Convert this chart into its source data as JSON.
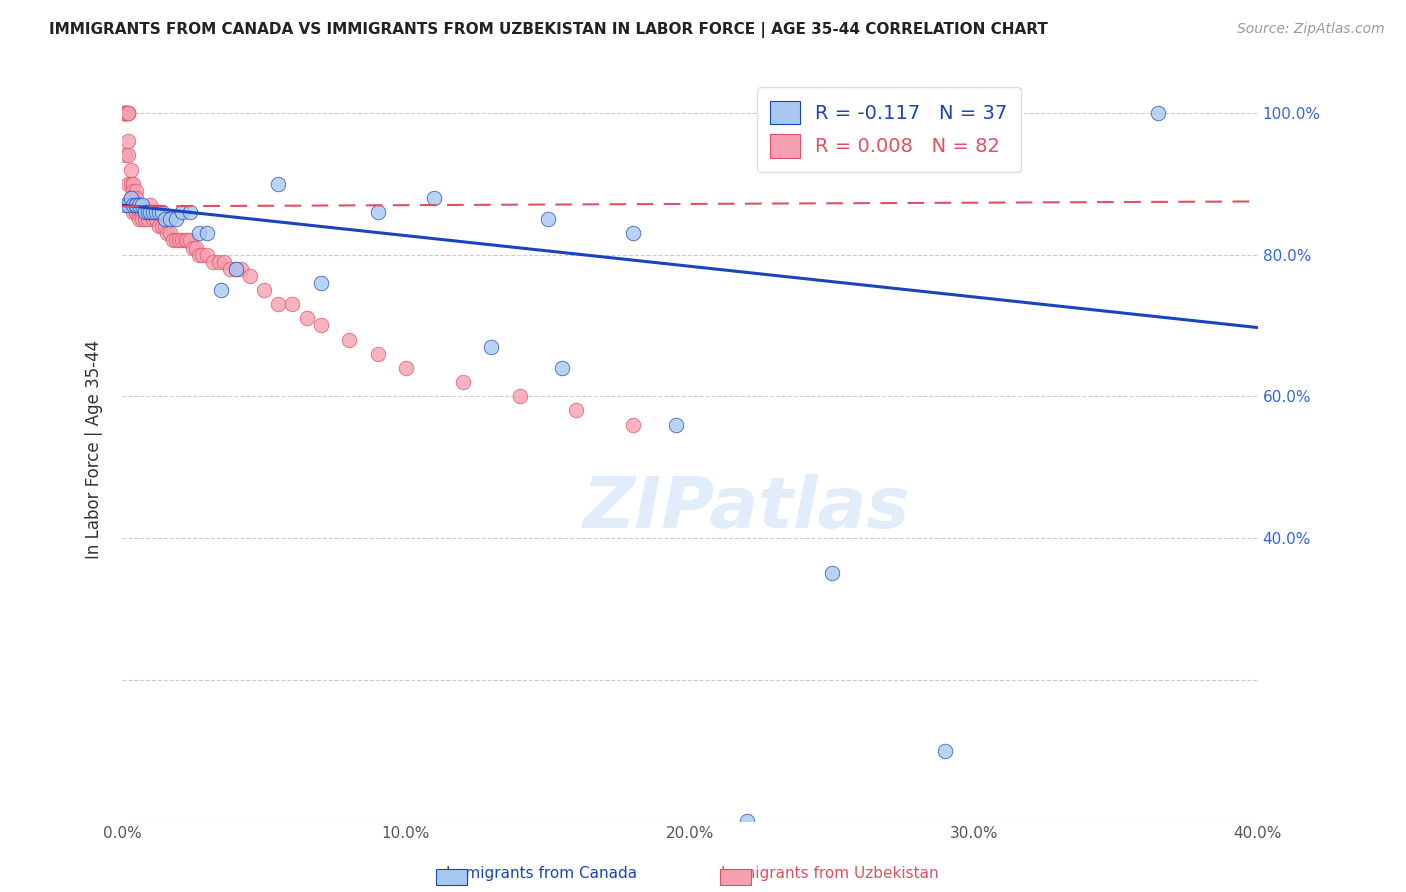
{
  "title": "IMMIGRANTS FROM CANADA VS IMMIGRANTS FROM UZBEKISTAN IN LABOR FORCE | AGE 35-44 CORRELATION CHART",
  "source": "Source: ZipAtlas.com",
  "ylabel": "In Labor Force | Age 35-44",
  "xlim": [
    0.0,
    0.4
  ],
  "ylim": [
    0.0,
    1.05
  ],
  "yticks": [
    0.0,
    0.2,
    0.4,
    0.6,
    0.8,
    1.0
  ],
  "xticks": [
    0.0,
    0.05,
    0.1,
    0.15,
    0.2,
    0.25,
    0.3,
    0.35,
    0.4
  ],
  "xtick_labels": [
    "0.0%",
    "",
    "10.0%",
    "",
    "20.0%",
    "",
    "30.0%",
    "",
    "40.0%"
  ],
  "legend_R_canada": "-0.117",
  "legend_N_canada": "37",
  "legend_R_uzbekistan": "0.008",
  "legend_N_uzbekistan": "82",
  "canada_color": "#a8c8f0",
  "uzbekistan_color": "#f5a0b0",
  "canada_line_color": "#1a44bb",
  "uzbekistan_line_color": "#e05060",
  "background_color": "#ffffff",
  "watermark": "ZIPatlas",
  "canada_x": [
    0.001,
    0.002,
    0.003,
    0.004,
    0.005,
    0.005,
    0.006,
    0.007,
    0.008,
    0.009,
    0.01,
    0.011,
    0.012,
    0.013,
    0.014,
    0.015,
    0.017,
    0.019,
    0.021,
    0.024,
    0.027,
    0.03,
    0.035,
    0.04,
    0.055,
    0.07,
    0.09,
    0.11,
    0.13,
    0.15,
    0.155,
    0.18,
    0.195,
    0.22,
    0.25,
    0.29,
    0.365
  ],
  "canada_y": [
    0.87,
    0.87,
    0.88,
    0.87,
    0.87,
    0.87,
    0.87,
    0.87,
    0.86,
    0.86,
    0.86,
    0.86,
    0.86,
    0.86,
    0.86,
    0.85,
    0.85,
    0.85,
    0.86,
    0.86,
    0.83,
    0.83,
    0.75,
    0.78,
    0.9,
    0.76,
    0.86,
    0.88,
    0.67,
    0.85,
    0.64,
    0.83,
    0.56,
    0.0,
    0.35,
    0.1,
    1.0
  ],
  "canada_trend_x": [
    0.0,
    0.4
  ],
  "canada_trend_y": [
    0.87,
    0.697
  ],
  "uzbekistan_trend_x": [
    0.0,
    0.4
  ],
  "uzbekistan_trend_y": [
    0.868,
    0.875
  ],
  "uzbekistan_x": [
    0.001,
    0.001,
    0.001,
    0.001,
    0.001,
    0.001,
    0.001,
    0.001,
    0.002,
    0.002,
    0.002,
    0.002,
    0.002,
    0.002,
    0.002,
    0.003,
    0.003,
    0.003,
    0.003,
    0.003,
    0.003,
    0.004,
    0.004,
    0.004,
    0.004,
    0.004,
    0.005,
    0.005,
    0.005,
    0.005,
    0.005,
    0.006,
    0.006,
    0.006,
    0.006,
    0.007,
    0.007,
    0.007,
    0.008,
    0.008,
    0.009,
    0.009,
    0.01,
    0.01,
    0.011,
    0.012,
    0.013,
    0.014,
    0.015,
    0.016,
    0.017,
    0.018,
    0.019,
    0.02,
    0.021,
    0.022,
    0.023,
    0.024,
    0.025,
    0.026,
    0.027,
    0.028,
    0.03,
    0.032,
    0.034,
    0.036,
    0.038,
    0.04,
    0.042,
    0.045,
    0.05,
    0.055,
    0.06,
    0.065,
    0.07,
    0.08,
    0.09,
    0.1,
    0.12,
    0.14,
    0.16,
    0.18
  ],
  "uzbekistan_y": [
    1.0,
    1.0,
    1.0,
    1.0,
    1.0,
    1.0,
    1.0,
    0.94,
    1.0,
    1.0,
    1.0,
    1.0,
    0.96,
    0.94,
    0.9,
    0.92,
    0.9,
    0.88,
    0.88,
    0.87,
    0.87,
    0.9,
    0.89,
    0.88,
    0.87,
    0.86,
    0.89,
    0.88,
    0.87,
    0.86,
    0.86,
    0.87,
    0.86,
    0.86,
    0.85,
    0.86,
    0.86,
    0.85,
    0.86,
    0.85,
    0.86,
    0.85,
    0.87,
    0.86,
    0.85,
    0.85,
    0.84,
    0.84,
    0.84,
    0.83,
    0.83,
    0.82,
    0.82,
    0.82,
    0.82,
    0.82,
    0.82,
    0.82,
    0.81,
    0.81,
    0.8,
    0.8,
    0.8,
    0.79,
    0.79,
    0.79,
    0.78,
    0.78,
    0.78,
    0.77,
    0.75,
    0.73,
    0.73,
    0.71,
    0.7,
    0.68,
    0.66,
    0.64,
    0.62,
    0.6,
    0.58,
    0.56
  ]
}
